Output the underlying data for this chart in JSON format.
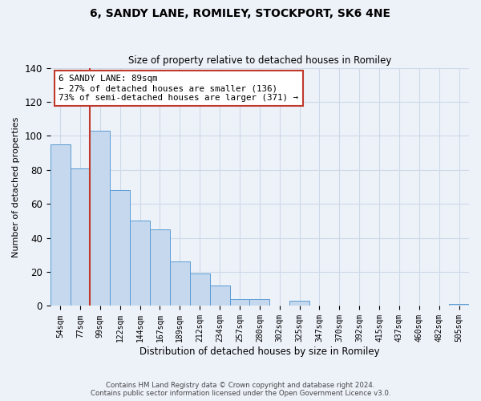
{
  "title": "6, SANDY LANE, ROMILEY, STOCKPORT, SK6 4NE",
  "subtitle": "Size of property relative to detached houses in Romiley",
  "xlabel": "Distribution of detached houses by size in Romiley",
  "ylabel": "Number of detached properties",
  "categories": [
    "54sqm",
    "77sqm",
    "99sqm",
    "122sqm",
    "144sqm",
    "167sqm",
    "189sqm",
    "212sqm",
    "234sqm",
    "257sqm",
    "280sqm",
    "302sqm",
    "325sqm",
    "347sqm",
    "370sqm",
    "392sqm",
    "415sqm",
    "437sqm",
    "460sqm",
    "482sqm",
    "505sqm"
  ],
  "values": [
    95,
    81,
    103,
    68,
    50,
    45,
    26,
    19,
    12,
    4,
    4,
    0,
    3,
    0,
    0,
    0,
    0,
    0,
    0,
    0,
    1
  ],
  "bar_color": "#c5d8ed",
  "bar_edge_color": "#5b9bd5",
  "vline_x": 2.0,
  "vline_color": "#c0392b",
  "ylim": [
    0,
    140
  ],
  "yticks": [
    0,
    20,
    40,
    60,
    80,
    100,
    120,
    140
  ],
  "annotation_title": "6 SANDY LANE: 89sqm",
  "annotation_line1": "← 27% of detached houses are smaller (136)",
  "annotation_line2": "73% of semi-detached houses are larger (371) →",
  "annotation_box_color": "#ffffff",
  "annotation_box_edge": "#c0392b",
  "footer1": "Contains HM Land Registry data © Crown copyright and database right 2024.",
  "footer2": "Contains public sector information licensed under the Open Government Licence v3.0.",
  "grid_color": "#cdd9e8",
  "background_color": "#edf2f9"
}
